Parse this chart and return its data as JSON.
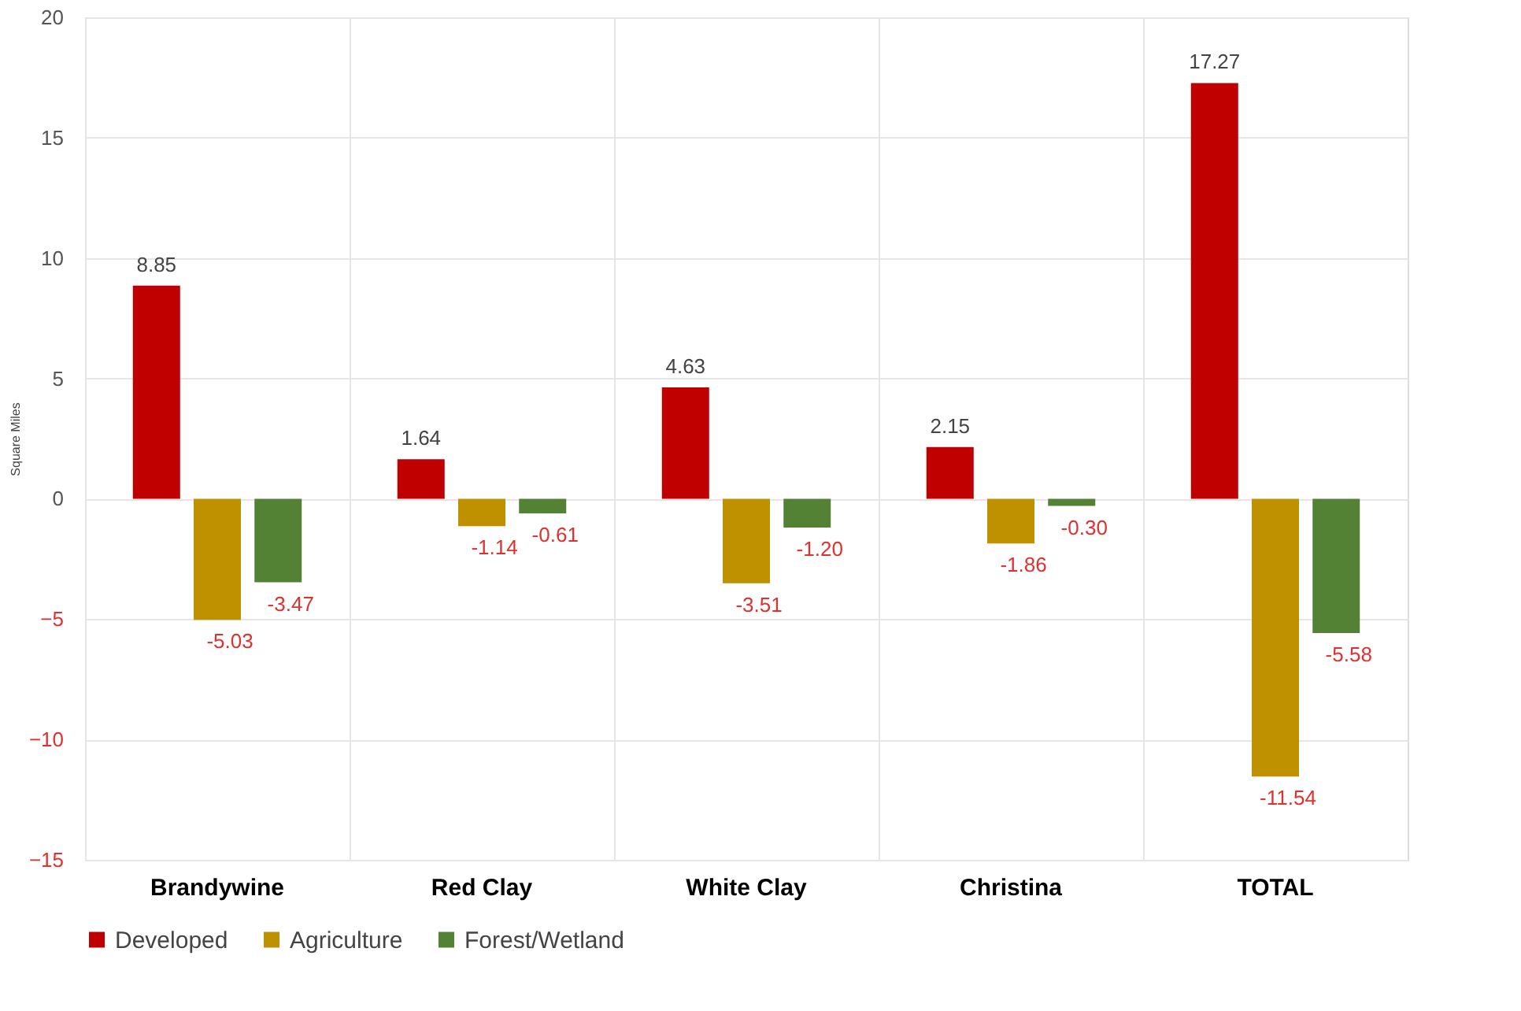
{
  "chart_data": {
    "type": "bar",
    "ylabel": "Square Miles",
    "categories": [
      "Brandywine",
      "Red Clay",
      "White Clay",
      "Christina",
      "TOTAL"
    ],
    "series": [
      {
        "name": "Developed",
        "color": "#c00000",
        "values": [
          8.85,
          1.64,
          4.63,
          2.15,
          17.27
        ],
        "value_labels": [
          "8.85",
          "1.64",
          "4.63",
          "2.15",
          "17.27"
        ]
      },
      {
        "name": "Agriculture",
        "color": "#bf9000",
        "values": [
          -5.03,
          -1.14,
          -3.51,
          -1.86,
          -11.54
        ],
        "value_labels": [
          "-5.03",
          "-1.14",
          "-3.51",
          "-1.86",
          "-11.54"
        ]
      },
      {
        "name": "Forest/Wetland",
        "color": "#548235",
        "values": [
          -3.47,
          -0.61,
          -1.2,
          -0.3,
          -5.58
        ],
        "value_labels": [
          "-3.47",
          "-0.61",
          "-1.20",
          "-0.30",
          "-5.58"
        ]
      }
    ],
    "ylim": [
      -15,
      20
    ],
    "yticks": [
      -15,
      -10,
      -5,
      0,
      5,
      10,
      15,
      20
    ],
    "grid": true,
    "legend": "bottom"
  }
}
